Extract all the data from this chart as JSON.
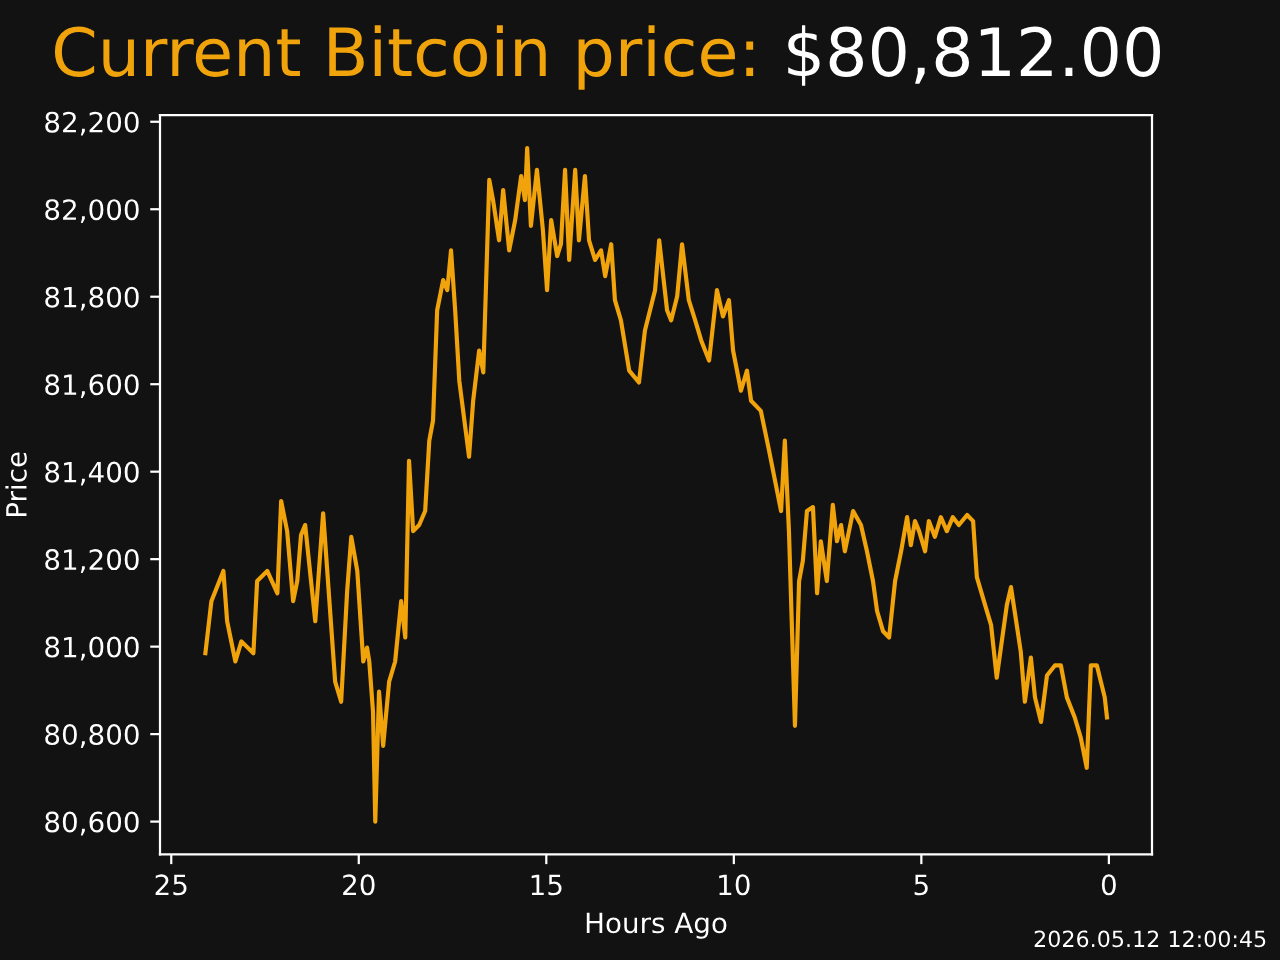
{
  "chart_data": {
    "type": "line",
    "title": "Current Bitcoin price:",
    "xlabel": "Hours Ago",
    "ylabel": "Price",
    "annotations": [
      "$80,812.00",
      "2026.05.12 12:00:45"
    ],
    "xlim": [
      25.3,
      -1.15
    ],
    "ylim": [
      80525,
      82215
    ],
    "xticks": [
      25,
      20,
      15,
      10,
      5,
      0
    ],
    "yticks": [
      {
        "value": 80600,
        "label": "80,600"
      },
      {
        "value": 80800,
        "label": "80,800"
      },
      {
        "value": 81000,
        "label": "81,000"
      },
      {
        "value": 81200,
        "label": "81,200"
      },
      {
        "value": 81400,
        "label": "81,400"
      },
      {
        "value": 81600,
        "label": "81,600"
      },
      {
        "value": 81800,
        "label": "81,800"
      },
      {
        "value": 82000,
        "label": "82,000"
      },
      {
        "value": 82200,
        "label": "82,200"
      }
    ],
    "grid": false,
    "series": [
      {
        "color": "#f0a30a",
        "x": [
          24.09,
          23.93,
          23.61,
          23.51,
          23.29,
          23.13,
          22.81,
          22.71,
          22.44,
          22.17,
          22.07,
          21.91,
          21.75,
          21.64,
          21.54,
          21.43,
          21.16,
          20.95,
          20.63,
          20.47,
          20.31,
          20.2,
          20.04,
          19.88,
          19.78,
          19.72,
          19.62,
          19.56,
          19.46,
          19.35,
          19.19,
          19.03,
          18.87,
          18.76,
          18.66,
          18.55,
          18.39,
          18.23,
          18.12,
          18.02,
          17.91,
          17.75,
          17.64,
          17.54,
          17.43,
          17.32,
          17.06,
          16.95,
          16.79,
          16.68,
          16.52,
          16.42,
          16.26,
          16.15,
          15.99,
          15.83,
          15.67,
          15.57,
          15.51,
          15.41,
          15.25,
          15.09,
          14.98,
          14.87,
          14.71,
          14.61,
          14.5,
          14.39,
          14.23,
          14.13,
          13.97,
          13.86,
          13.7,
          13.54,
          13.43,
          13.27,
          13.17,
          13.01,
          12.79,
          12.53,
          12.37,
          12.1,
          11.99,
          11.78,
          11.67,
          11.51,
          11.38,
          11.2,
          11.03,
          10.87,
          10.66,
          10.45,
          10.29,
          10.13,
          10.02,
          9.81,
          9.65,
          9.54,
          9.28,
          9.06,
          8.9,
          8.74,
          8.64,
          8.53,
          8.37,
          8.26,
          8.16,
          8.05,
          7.89,
          7.78,
          7.68,
          7.52,
          7.36,
          7.25,
          7.14,
          7.04,
          6.82,
          6.61,
          6.45,
          6.29,
          6.18,
          6.02,
          5.86,
          5.7,
          5.54,
          5.38,
          5.28,
          5.17,
          5.06,
          4.9,
          4.8,
          4.64,
          4.48,
          4.32,
          4.16,
          4.0,
          3.78,
          3.62,
          3.52,
          3.3,
          3.14,
          2.99,
          2.72,
          2.61,
          2.35,
          2.24,
          2.08,
          1.97,
          1.81,
          1.65,
          1.44,
          1.28,
          1.12,
          0.91,
          0.75,
          0.59,
          0.48,
          0.32,
          0.11,
          0.05
        ],
        "values": [
          80985,
          81104,
          81173,
          81058,
          80966,
          81012,
          80985,
          81150,
          81173,
          81122,
          81333,
          81264,
          81104,
          81150,
          81255,
          81278,
          81058,
          81305,
          80920,
          80874,
          81127,
          81251,
          81173,
          80966,
          80998,
          80966,
          80851,
          80600,
          80897,
          80773,
          80920,
          80966,
          81104,
          81021,
          81425,
          81264,
          81278,
          81310,
          81471,
          81517,
          81769,
          81838,
          81815,
          81906,
          81769,
          81608,
          81434,
          81562,
          81677,
          81627,
          82067,
          82021,
          81929,
          82044,
          81906,
          81975,
          82076,
          82021,
          82140,
          81962,
          82090,
          81952,
          81815,
          81975,
          81893,
          81920,
          82090,
          81884,
          82090,
          81929,
          82076,
          81929,
          81884,
          81906,
          81847,
          81920,
          81792,
          81746,
          81631,
          81604,
          81723,
          81815,
          81929,
          81769,
          81746,
          81801,
          81920,
          81792,
          81746,
          81700,
          81654,
          81815,
          81755,
          81792,
          81677,
          81585,
          81631,
          81562,
          81539,
          81448,
          81379,
          81310,
          81471,
          81264,
          80819,
          81150,
          81196,
          81310,
          81319,
          81122,
          81241,
          81150,
          81324,
          81241,
          81278,
          81218,
          81310,
          81278,
          81218,
          81150,
          81081,
          81035,
          81021,
          81150,
          81218,
          81296,
          81232,
          81287,
          81264,
          81218,
          81287,
          81251,
          81296,
          81264,
          81296,
          81278,
          81301,
          81287,
          81159,
          81095,
          81049,
          80929,
          81095,
          81136,
          80989,
          80874,
          80975,
          80884,
          80828,
          80934,
          80957,
          80957,
          80884,
          80838,
          80792,
          80723,
          80957,
          80957,
          80884,
          80838
        ]
      }
    ]
  }
}
